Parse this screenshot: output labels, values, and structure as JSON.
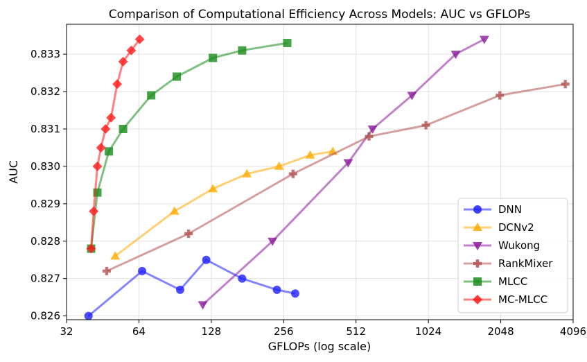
{
  "chart_data": {
    "type": "line",
    "title": "Comparison of Computational Efficiency Across Models: AUC vs GFLOPs",
    "xlabel": "GFLOPs (log scale)",
    "ylabel": "AUC",
    "xscale": "log2",
    "xlim": [
      32,
      4096
    ],
    "ylim": [
      0.8259,
      0.8338
    ],
    "x_ticks": [
      32,
      64,
      128,
      256,
      512,
      1024,
      2048,
      4096
    ],
    "x_tick_labels": [
      "32",
      "64",
      "128",
      "256",
      "512",
      "1024",
      "2048",
      "4096"
    ],
    "y_ticks": [
      0.826,
      0.827,
      0.828,
      0.829,
      0.83,
      0.831,
      0.832,
      0.833
    ],
    "y_tick_labels": [
      "0.826",
      "0.827",
      "0.828",
      "0.829",
      "0.830",
      "0.831",
      "0.832",
      "0.833"
    ],
    "grid": true,
    "legend_position": "lower-right",
    "series": [
      {
        "name": "DNN",
        "color": "#1f1fff",
        "marker": "circle",
        "x": [
          39.5,
          66,
          95,
          122,
          172,
          240,
          286
        ],
        "y": [
          0.826,
          0.8272,
          0.8267,
          0.8275,
          0.827,
          0.8267,
          0.8266
        ]
      },
      {
        "name": "DCNv2",
        "color": "#ffaa00",
        "marker": "triangle-up",
        "x": [
          51,
          90,
          130,
          180,
          245,
          330,
          410
        ],
        "y": [
          0.8276,
          0.8288,
          0.8294,
          0.8298,
          0.83,
          0.8303,
          0.8304
        ]
      },
      {
        "name": "Wukong",
        "color": "#8b1a9b",
        "marker": "triangle-down",
        "x": [
          118,
          230,
          475,
          600,
          875,
          1330,
          1750
        ],
        "y": [
          0.8263,
          0.828,
          0.8301,
          0.831,
          0.8319,
          0.833,
          0.8334
        ]
      },
      {
        "name": "RankMixer",
        "color": "#b05050",
        "marker": "plus",
        "x": [
          47,
          103,
          280,
          580,
          1000,
          2030,
          3800
        ],
        "y": [
          0.8272,
          0.8282,
          0.8298,
          0.8308,
          0.8311,
          0.8319,
          0.8322
        ]
      },
      {
        "name": "MLCC",
        "color": "#1a8c1a",
        "marker": "square",
        "x": [
          40.5,
          43,
          48,
          55,
          72,
          92,
          130,
          172,
          265
        ],
        "y": [
          0.8278,
          0.8293,
          0.8304,
          0.831,
          0.8319,
          0.8324,
          0.8329,
          0.8331,
          0.8333
        ]
      },
      {
        "name": "MC-MLCC",
        "color": "#ff1a1a",
        "marker": "diamond",
        "x": [
          40.5,
          41.5,
          43,
          44.5,
          46.5,
          49,
          52,
          55,
          59.5,
          64.5
        ],
        "y": [
          0.8278,
          0.8288,
          0.83,
          0.8305,
          0.831,
          0.8313,
          0.8322,
          0.8328,
          0.8331,
          0.8334
        ]
      }
    ]
  }
}
